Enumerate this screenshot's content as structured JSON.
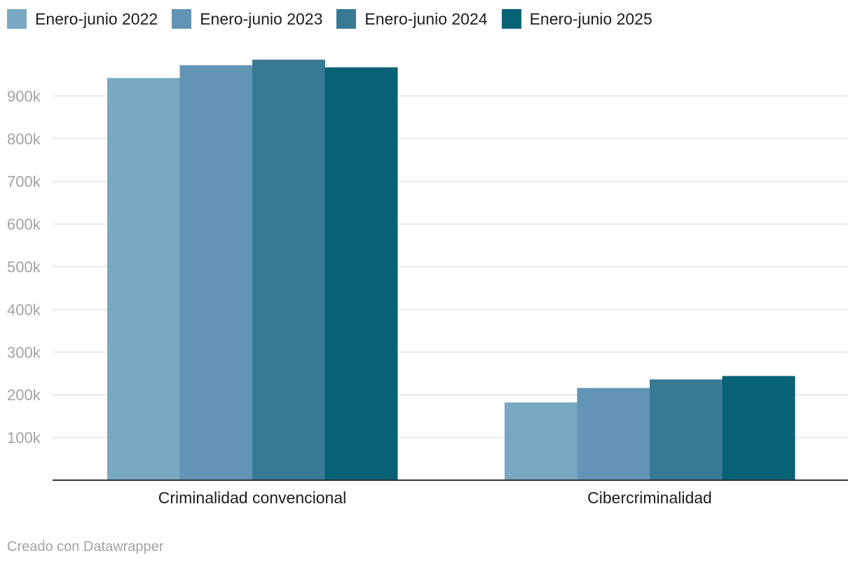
{
  "chart_data": {
    "type": "bar",
    "categories": [
      "Criminalidad convencional",
      "Cibercriminalidad"
    ],
    "series": [
      {
        "name": "Enero-junio 2022",
        "color": "#78a8c2",
        "values": [
          942000,
          182000
        ]
      },
      {
        "name": "Enero-junio 2023",
        "color": "#6295b5",
        "values": [
          972000,
          216000
        ]
      },
      {
        "name": "Enero-junio 2024",
        "color": "#387a94",
        "values": [
          985000,
          236000
        ]
      },
      {
        "name": "Enero-junio 2025",
        "color": "#076275",
        "values": [
          967000,
          244000
        ]
      }
    ],
    "ylim": [
      0,
      1000000
    ],
    "yticks": [
      100000,
      200000,
      300000,
      400000,
      500000,
      600000,
      700000,
      800000,
      900000
    ],
    "ytick_labels": [
      "100k",
      "200k",
      "300k",
      "400k",
      "500k",
      "600k",
      "700k",
      "800k",
      "900k"
    ],
    "grid": true,
    "legend_position": "top-left"
  },
  "footer": {
    "credit": "Creado con Datawrapper"
  }
}
